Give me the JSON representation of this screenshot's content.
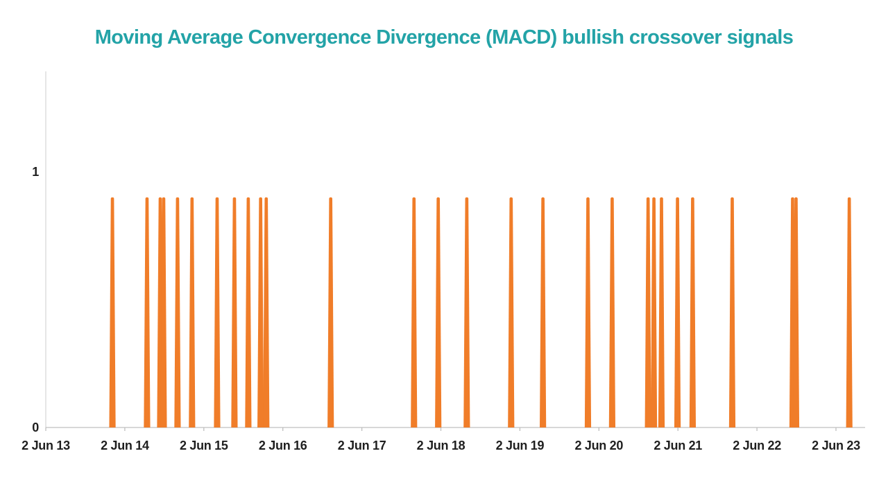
{
  "title": {
    "text": "Moving Average Convergence Divergence (MACD) bullish crossover signals",
    "color": "#23A3A7"
  },
  "chart_data": {
    "type": "bar",
    "subtype": "event-spikes",
    "title": "Moving Average Convergence Divergence (MACD) bullish crossover signals",
    "xlabel": "",
    "ylabel": "",
    "x_axis": {
      "start_date": "2013-06-02",
      "tick_interval": "1 year",
      "tick_labels": [
        "2 Jun 13",
        "2 Jun 14",
        "2 Jun 15",
        "2 Jun 16",
        "2 Jun 17",
        "2 Jun 18",
        "2 Jun 19",
        "2 Jun 20",
        "2 Jun 21",
        "2 Jun 22",
        "2 Jun 23"
      ]
    },
    "y_axis": {
      "tick_labels": [
        "0",
        "1"
      ],
      "tick_values": [
        0,
        1
      ],
      "ylim": [
        0,
        1.39
      ],
      "grid": false
    },
    "legend": null,
    "series": [
      {
        "name": "MACD bullish crossover signal",
        "color": "#F07D29",
        "spike_value": 0.9,
        "baseline_value": 0,
        "dates": [
          "2014-04-06",
          "2014-09-13",
          "2014-11-13",
          "2014-11-29",
          "2015-02-01",
          "2015-04-09",
          "2015-08-03",
          "2015-10-22",
          "2015-12-25",
          "2016-02-20",
          "2016-03-17",
          "2017-01-09",
          "2018-01-29",
          "2018-05-21",
          "2018-09-30",
          "2019-04-23",
          "2019-09-17",
          "2020-04-12",
          "2020-08-02",
          "2021-01-15",
          "2021-02-11",
          "2021-03-18",
          "2021-05-31",
          "2021-08-09",
          "2022-02-08",
          "2022-11-14",
          "2022-11-30",
          "2023-08-03"
        ]
      }
    ],
    "colors": {
      "bar": "#F07D29",
      "title": "#23A3A7",
      "axis_line": "#D9D9D9",
      "baseline": "#BFBFBF",
      "tick": "#BFBFBF",
      "tick_label": "#1F1F1F"
    }
  }
}
